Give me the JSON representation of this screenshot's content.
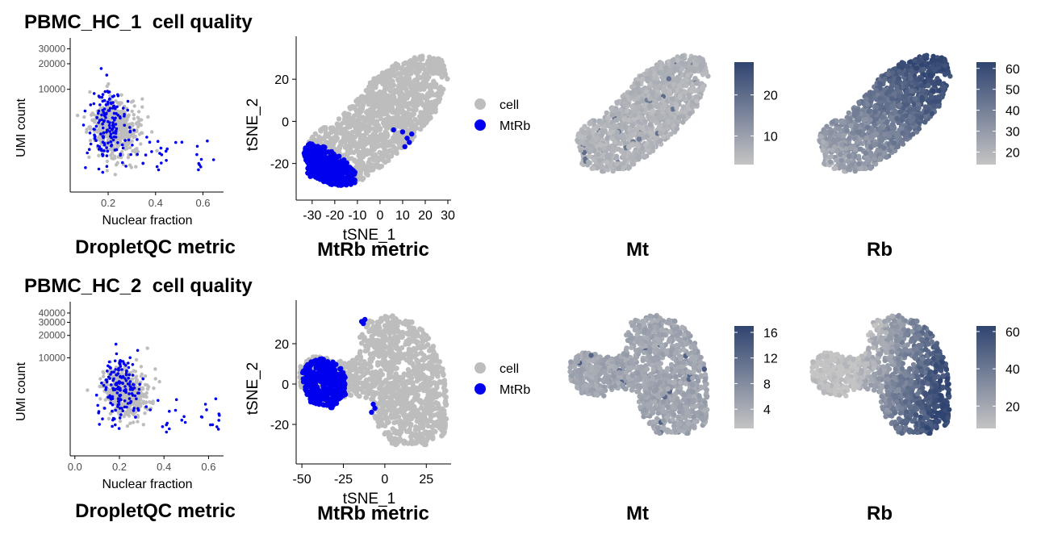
{
  "colors": {
    "cell": "#bdbdbd",
    "mtrb": "#0000ee",
    "gradient_low": "#c4c4c4",
    "gradient_high": "#2f4470",
    "axis": "#000000"
  },
  "rows": [
    {
      "title": "PBMC_HC_1  cell quality",
      "dropletqc": {
        "panel_title": "DropletQC metric",
        "chart_data": {
          "type": "scatter",
          "xlabel": "Nuclear fraction",
          "ylabel": "UMI count",
          "y_scale": "log",
          "x_ticks": [
            "0.2",
            "0.4",
            "0.6"
          ],
          "y_ticks": [
            "10000",
            "20000",
            "30000"
          ],
          "series": [
            {
              "name": "cell"
            },
            {
              "name": "MtRb"
            }
          ]
        }
      },
      "mtrb": {
        "panel_title": "MtRb metric",
        "chart_data": {
          "type": "scatter",
          "xlabel": "tSNE_1",
          "ylabel": "tSNE_2",
          "x_ticks": [
            "-30",
            "-20",
            "-10",
            "0",
            "10",
            "20",
            "30"
          ],
          "y_ticks": [
            "20",
            "0",
            "-20"
          ],
          "legend": [
            {
              "label": "cell"
            },
            {
              "label": "MtRb"
            }
          ],
          "legend_position": "right"
        }
      },
      "mt": {
        "panel_title": "Mt",
        "chart_data": {
          "type": "scatter",
          "colorbar_ticks": [
            "20",
            "10"
          ],
          "colorbar_range": [
            3,
            28
          ]
        }
      },
      "rb": {
        "panel_title": "Rb",
        "chart_data": {
          "type": "scatter",
          "colorbar_ticks": [
            "60",
            "50",
            "40",
            "30",
            "20"
          ],
          "colorbar_range": [
            14,
            63
          ]
        }
      }
    },
    {
      "title": "PBMC_HC_2  cell quality",
      "dropletqc": {
        "panel_title": "DropletQC metric",
        "chart_data": {
          "type": "scatter",
          "xlabel": "Nuclear fraction",
          "ylabel": "UMI count",
          "y_scale": "log",
          "x_ticks": [
            "0.0",
            "0.2",
            "0.4",
            "0.6"
          ],
          "y_ticks": [
            "10000",
            "20000",
            "30000",
            "40000"
          ],
          "series": [
            {
              "name": "cell"
            },
            {
              "name": "MtRb"
            }
          ]
        }
      },
      "mtrb": {
        "panel_title": "MtRb metric",
        "chart_data": {
          "type": "scatter",
          "xlabel": "tSNE_1",
          "ylabel": "tSNE_2",
          "x_ticks": [
            "-50",
            "-25",
            "0",
            "25"
          ],
          "y_ticks": [
            "20",
            "0",
            "-20"
          ],
          "legend": [
            {
              "label": "cell"
            },
            {
              "label": "MtRb"
            }
          ],
          "legend_position": "right"
        }
      },
      "mt": {
        "panel_title": "Mt",
        "chart_data": {
          "type": "scatter",
          "colorbar_ticks": [
            "16",
            "12",
            "8",
            "4"
          ],
          "colorbar_range": [
            1,
            17
          ]
        }
      },
      "rb": {
        "panel_title": "Rb",
        "chart_data": {
          "type": "scatter",
          "colorbar_ticks": [
            "60",
            "40",
            "20"
          ],
          "colorbar_range": [
            8,
            63
          ]
        }
      }
    }
  ]
}
